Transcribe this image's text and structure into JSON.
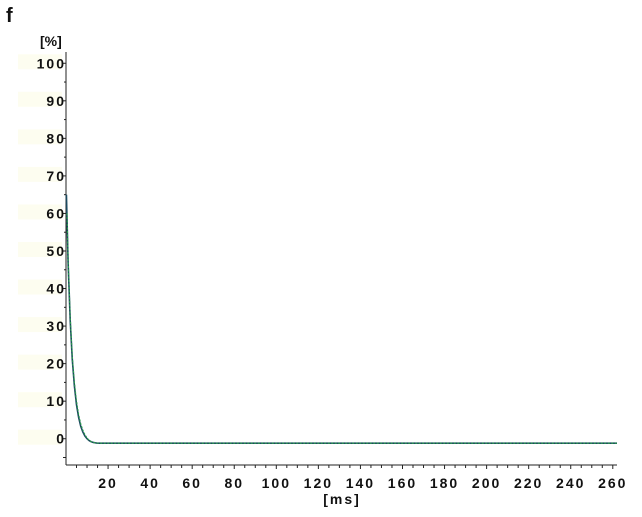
{
  "panel_label": "f",
  "chart_data": {
    "type": "line",
    "title": "",
    "ylabel": "[%]",
    "xlabel": "[ms]",
    "ylim": [
      -7,
      103
    ],
    "xlim": [
      0,
      262
    ],
    "yticks": [
      0,
      10,
      20,
      30,
      40,
      50,
      60,
      70,
      80,
      90,
      100
    ],
    "ytick_labels": [
      "0",
      "10",
      "20",
      "30",
      "40",
      "50",
      "60",
      "70",
      "80",
      "90",
      "100"
    ],
    "xticks": [
      20,
      40,
      60,
      80,
      100,
      120,
      140,
      160,
      180,
      200,
      220,
      240,
      260
    ],
    "xtick_labels": [
      "20",
      "40",
      "60",
      "80",
      "100",
      "120",
      "140",
      "160",
      "180",
      "200",
      "220",
      "240",
      "260"
    ],
    "grid": false,
    "legend": false,
    "series": [
      {
        "color": "#1c4a60",
        "x": [
          0.2,
          1,
          2,
          3,
          4,
          5,
          6,
          7,
          8,
          9,
          10,
          11,
          12,
          13,
          14,
          15,
          17,
          20,
          30,
          60,
          100,
          150,
          200,
          262
        ],
        "y": [
          65,
          47,
          31.5,
          21,
          14,
          9,
          5.7,
          3.3,
          1.8,
          0.7,
          0,
          -0.5,
          -0.8,
          -1,
          -1.1,
          -1.2,
          -1.2,
          -1.2,
          -1.2,
          -1.2,
          -1.2,
          -1.2,
          -1.2,
          -1.2
        ]
      },
      {
        "color": "#2aa04a",
        "x": [
          0.5,
          1,
          2,
          3,
          4,
          5,
          6,
          7,
          8,
          9,
          10,
          11,
          12,
          13,
          14,
          15,
          17,
          20,
          30,
          60,
          100,
          150,
          200,
          262
        ],
        "y": [
          60,
          48,
          32.5,
          22,
          15,
          10,
          6.5,
          4,
          2.3,
          1.1,
          0.2,
          -0.4,
          -0.8,
          -1,
          -1.1,
          -1.2,
          -1.2,
          -1.2,
          -1.2,
          -1.2,
          -1.2,
          -1.2,
          -1.2,
          -1.2
        ]
      }
    ]
  }
}
